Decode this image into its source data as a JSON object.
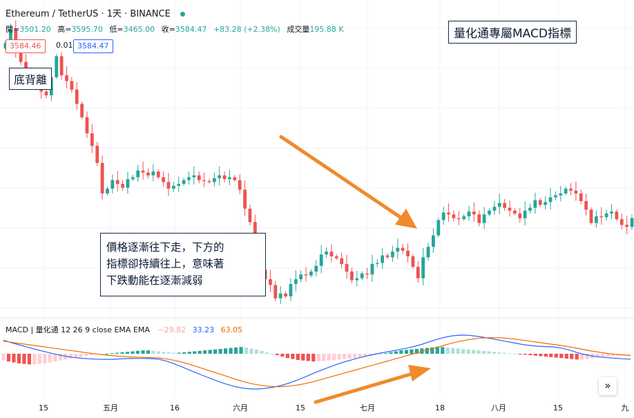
{
  "header": {
    "symbol": "Ethereum / TetherUS · 1天 · BINANCE",
    "ohlc": {
      "open_label": "開=",
      "open": "3501.20",
      "high_label": "高=",
      "high": "3595.70",
      "low_label": "低=",
      "low": "3465.00",
      "close_label": "收=",
      "close": "3584.47",
      "change": "+83.28 (+2.38%)",
      "volume_label": "成交量",
      "volume": "195.88 K"
    },
    "sell_price": "3584.46",
    "spread": "0.01",
    "buy_price": "3584.47"
  },
  "annotations": {
    "title": "量化通專屬MACD指標",
    "divergence": "底背離",
    "note_lines": [
      "價格逐漸往下走，下方的",
      "指標卻持續往上，意味著",
      "下跌動能在逐漸減弱"
    ]
  },
  "macd_label": {
    "name": "MACD | 量化通 12 26 9 close EMA EMA",
    "hist": "−29.82",
    "macd": "33.23",
    "signal": "63.05"
  },
  "scroll_button": "»",
  "colors": {
    "up": "#26a69a",
    "down": "#ef5350",
    "macd": "#2962ff",
    "signal": "#ef6c00",
    "arrow": "#f08a2c"
  },
  "chart_data": {
    "type": "candlestick",
    "x_ticks": [
      "15",
      "五月",
      "16",
      "六月",
      "15",
      "七月",
      "18",
      "八月",
      "15",
      "九"
    ],
    "price_close": [
      3220,
      3290,
      3180,
      3120,
      3080,
      3035,
      2995,
      2965,
      2945,
      3040,
      3150,
      3050,
      3020,
      2975,
      2900,
      2830,
      2745,
      2680,
      2590,
      2430,
      2455,
      2500,
      2480,
      2460,
      2505,
      2515,
      2550,
      2540,
      2525,
      2545,
      2515,
      2490,
      2455,
      2470,
      2480,
      2500,
      2515,
      2525,
      2500,
      2495,
      2490,
      2510,
      2525,
      2505,
      2515,
      2500,
      2450,
      2350,
      2280,
      2160,
      2030,
      1980,
      1950,
      1880,
      1905,
      1890,
      1955,
      1980,
      2005,
      2000,
      2020,
      2050,
      2110,
      2125,
      2100,
      2090,
      2060,
      2020,
      1975,
      1985,
      2010,
      2005,
      2060,
      2065,
      2105,
      2095,
      2125,
      2145,
      2130,
      2100,
      2045,
      1985,
      2095,
      2150,
      2210,
      2290,
      2330,
      2320,
      2300,
      2295,
      2310,
      2335,
      2320,
      2275,
      2320,
      2340,
      2360,
      2380,
      2355,
      2340,
      2325,
      2300,
      2340,
      2355,
      2395,
      2370,
      2385,
      2410,
      2420,
      2430,
      2455,
      2445,
      2430,
      2390,
      2345,
      2275,
      2310,
      2305,
      2325,
      2335,
      2295,
      2265,
      2255,
      2300
    ],
    "macd_histogram": [
      -14,
      -16,
      -18,
      -20,
      -21,
      -22,
      -22,
      -21,
      -20,
      -18,
      -16,
      -14,
      -12,
      -10,
      -9,
      -7,
      -5,
      -3,
      -2,
      -1,
      0,
      1,
      2,
      3,
      4,
      5,
      6,
      7,
      7,
      6,
      5,
      4,
      3,
      2,
      2,
      3,
      4,
      5,
      6,
      7,
      8,
      9,
      10,
      11,
      12,
      13,
      14,
      13,
      11,
      9,
      6,
      3,
      0,
      -3,
      -6,
      -9,
      -11,
      -13,
      -14,
      -15,
      -16,
      -16,
      -15,
      -14,
      -13,
      -12,
      -11,
      -10,
      -9,
      -8,
      -7,
      -5,
      -3,
      -1,
      1,
      3,
      5,
      7,
      8,
      9,
      10,
      11,
      12,
      13,
      14,
      14,
      13,
      12,
      11,
      10,
      9,
      8,
      7,
      6,
      5,
      4,
      3,
      2,
      1,
      0,
      -1,
      -2,
      -3,
      -4,
      -5,
      -6,
      -7,
      -8,
      -9,
      -10,
      -11,
      -12,
      -12,
      -11,
      -10,
      -8,
      -7,
      -6,
      -5,
      -4,
      -3,
      -2
    ],
    "macd_line": [
      75,
      62,
      50,
      38,
      26,
      15,
      5,
      -5,
      -14,
      -20,
      -25,
      -28,
      -30,
      -31,
      -31,
      -29,
      -27,
      -26,
      -26,
      -27,
      -30,
      -40,
      -55,
      -72,
      -90,
      -108,
      -125,
      -142,
      -158,
      -172,
      -184,
      -192,
      -196,
      -196,
      -192,
      -185,
      -175,
      -162,
      -146,
      -128,
      -110,
      -92,
      -76,
      -60,
      -46,
      -34,
      -22,
      -12,
      -2,
      6,
      14,
      22,
      30,
      40,
      52,
      66,
      80,
      92,
      100,
      104,
      103,
      98,
      92,
      84,
      76,
      68,
      60,
      52,
      46,
      42,
      40,
      38,
      32,
      22,
      8,
      -4,
      -12,
      -18,
      -22,
      -25,
      -28,
      -30
    ],
    "signal_line": [
      70,
      64,
      58,
      52,
      46,
      40,
      34,
      28,
      22,
      16,
      10,
      4,
      -1,
      -6,
      -10,
      -14,
      -17,
      -19,
      -20,
      -21,
      -23,
      -28,
      -36,
      -46,
      -58,
      -72,
      -86,
      -100,
      -114,
      -128,
      -142,
      -155,
      -166,
      -174,
      -180,
      -183,
      -183,
      -180,
      -174,
      -166,
      -156,
      -144,
      -132,
      -120,
      -108,
      -96,
      -84,
      -72,
      -60,
      -48,
      -36,
      -24,
      -12,
      0,
      12,
      24,
      36,
      48,
      60,
      70,
      78,
      84,
      88,
      90,
      89,
      86,
      82,
      76,
      70,
      64,
      58,
      52,
      46,
      39,
      31,
      23,
      15,
      8,
      2,
      -3,
      -7,
      -10
    ]
  }
}
